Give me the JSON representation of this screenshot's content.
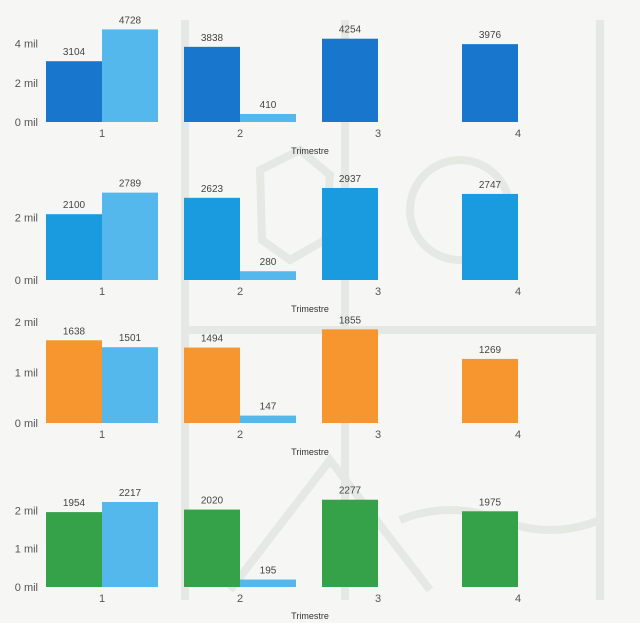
{
  "colors": {
    "blue_dark": "#1877cc",
    "blue_light": "#55b8ec",
    "blue_mid": "#1a9be0",
    "orange": "#f7962e",
    "green": "#35a24a",
    "light_companion": "#55b8ec"
  },
  "chart_data": [
    {
      "type": "bar",
      "categories": [
        "1",
        "2",
        "3",
        "4"
      ],
      "series": [
        {
          "values": [
            3104,
            3838,
            4254,
            3976
          ],
          "color": "#1877cc"
        },
        {
          "values": [
            4728,
            410,
            null,
            null
          ],
          "color": "#55b8ec"
        }
      ],
      "xlabel": "Trimestre",
      "ylabel": "",
      "ylim": [
        0,
        4800
      ],
      "y_ticks": [
        0,
        2000,
        4000
      ],
      "y_tick_labels": [
        "0 mil",
        "2 mil",
        "4 mil"
      ],
      "grid": false
    },
    {
      "type": "bar",
      "categories": [
        "1",
        "2",
        "3",
        "4"
      ],
      "series": [
        {
          "values": [
            2100,
            2623,
            2937,
            2747
          ],
          "color": "#1a9be0"
        },
        {
          "values": [
            2789,
            280,
            null,
            null
          ],
          "color": "#55b8ec"
        }
      ],
      "xlabel": "Trimestre",
      "ylabel": "",
      "ylim": [
        0,
        3000
      ],
      "y_ticks": [
        0,
        2000
      ],
      "y_tick_labels": [
        "0 mil",
        "2 mil"
      ],
      "grid": false
    },
    {
      "type": "bar",
      "categories": [
        "1",
        "2",
        "3",
        "4"
      ],
      "series": [
        {
          "values": [
            1638,
            1494,
            1855,
            1269
          ],
          "color": "#f7962e"
        },
        {
          "values": [
            1501,
            147,
            null,
            null
          ],
          "color": "#55b8ec"
        }
      ],
      "xlabel": "Trimestre",
      "ylabel": "",
      "ylim": [
        0,
        2000
      ],
      "y_ticks": [
        0,
        1000,
        2000
      ],
      "y_tick_labels": [
        "0 mil",
        "1 mil",
        "2 mil"
      ],
      "grid": false
    },
    {
      "type": "bar",
      "categories": [
        "1",
        "2",
        "3",
        "4"
      ],
      "series": [
        {
          "values": [
            1954,
            2020,
            2277,
            1975
          ],
          "color": "#35a24a"
        },
        {
          "values": [
            2217,
            195,
            null,
            null
          ],
          "color": "#55b8ec"
        }
      ],
      "xlabel": "Trimestre",
      "ylabel": "",
      "ylim": [
        0,
        2400
      ],
      "y_ticks": [
        0,
        1000,
        2000
      ],
      "y_tick_labels": [
        "0 mil",
        "1 mil",
        "2 mil"
      ],
      "grid": false
    }
  ]
}
